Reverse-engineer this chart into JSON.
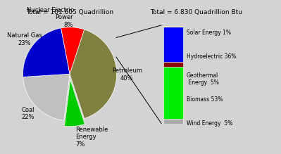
{
  "title_left": "Total = 101.605 Quadrillion",
  "title_right": "Total = 6.830 Quadrillion Btu",
  "pie_labels": [
    "Petroleum\n40%",
    "Renewable\nEnergy\n7%",
    "Coal\n22%",
    "Natural Gas\n23%",
    "Nuclear Electric\nPower\n8%"
  ],
  "pie_sizes": [
    40,
    7,
    22,
    23,
    8
  ],
  "pie_colors": [
    "#808040",
    "#00cc00",
    "#c0c0c0",
    "#0000cc",
    "#ff0000"
  ],
  "pie_explode": [
    0,
    0.12,
    0,
    0,
    0
  ],
  "bar_labels": [
    "Solar Energy 1%",
    "Hydroelectric 36%",
    "Geothermal\n Energy  5%",
    "Biomass 53%",
    "Wind Energy  5%"
  ],
  "bar_sizes": [
    1,
    36,
    5,
    53,
    5
  ],
  "bar_colors_bottom_up": [
    "#a9a9a9",
    "#00ee00",
    "#8b0000",
    "#0000ff",
    "#c8c800"
  ],
  "fig_bg": "#d3d3d3",
  "pie_startangle": 72,
  "label_fontsize": 6.0,
  "title_fontsize": 6.5
}
